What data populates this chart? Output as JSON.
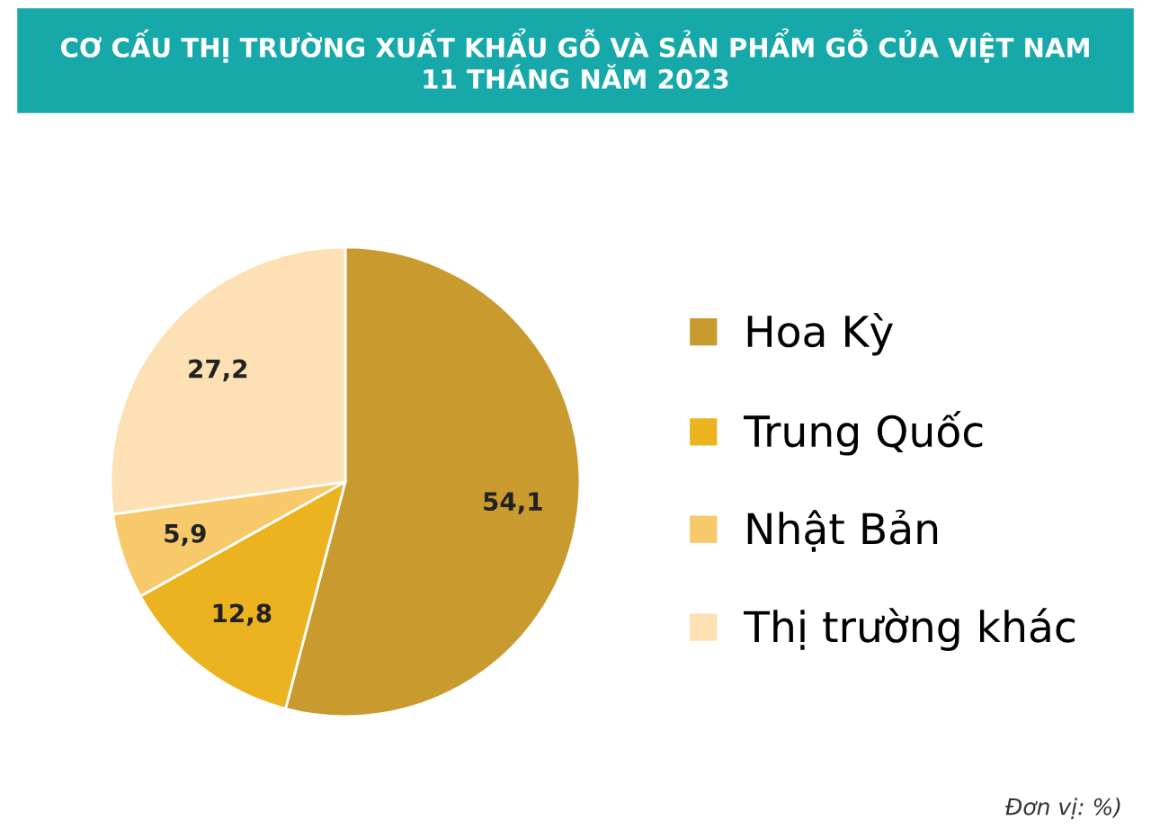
{
  "chart_data": {
    "type": "pie",
    "title": "CƠ CẤU THỊ TRƯỜNG XUẤT KHẨU GỖ VÀ SẢN PHẨM GỖ CỦA VIỆT NAM\n11 THÁNG NĂM 2023",
    "categories": [
      "Hoa Kỳ",
      "Trung Quốc",
      "Nhật Bản",
      "Thị trường khác"
    ],
    "values": [
      54.1,
      12.8,
      5.9,
      27.2
    ],
    "value_labels": [
      "54,1",
      "12,8",
      "5,9",
      "27,2"
    ],
    "colors": [
      "#c99a2e",
      "#ebb31f",
      "#f8c96a",
      "#fde0b4"
    ],
    "legend": "right",
    "annotations": [
      "Đơn vị: %)"
    ]
  }
}
